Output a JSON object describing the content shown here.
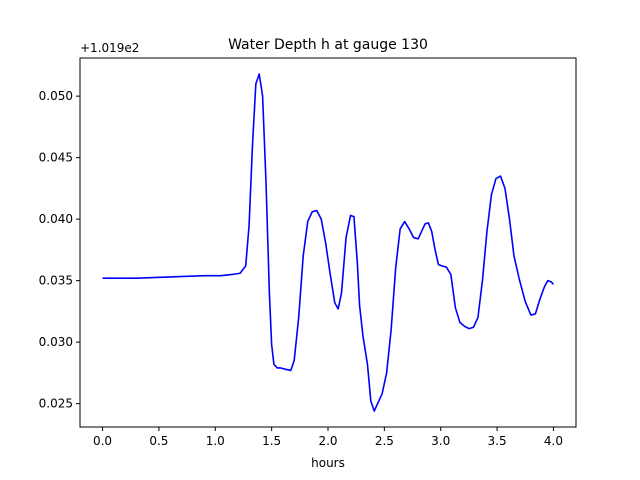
{
  "chart_data": {
    "type": "line",
    "title": "Water Depth h at gauge 130",
    "xlabel": "hours",
    "ylabel": "",
    "y_offset_label": "+1.019e2",
    "xlim": [
      -0.2,
      4.2
    ],
    "ylim": [
      0.0231,
      0.0531
    ],
    "x_ticks": [
      0.0,
      0.5,
      1.0,
      1.5,
      2.0,
      2.5,
      3.0,
      3.5,
      4.0
    ],
    "x_tick_labels": [
      "0.0",
      "0.5",
      "1.0",
      "1.5",
      "2.0",
      "2.5",
      "3.0",
      "3.5",
      "4.0"
    ],
    "y_ticks": [
      0.025,
      0.03,
      0.035,
      0.04,
      0.045,
      0.05
    ],
    "y_tick_labels": [
      "0.025",
      "0.030",
      "0.035",
      "0.040",
      "0.045",
      "0.050"
    ],
    "grid": false,
    "series": [
      {
        "color": "#0000ff",
        "x": [
          0.0,
          0.3,
          0.6,
          0.9,
          1.05,
          1.15,
          1.22,
          1.27,
          1.3,
          1.33,
          1.36,
          1.39,
          1.42,
          1.45,
          1.48,
          1.5,
          1.52,
          1.55,
          1.58,
          1.62,
          1.67,
          1.7,
          1.74,
          1.78,
          1.82,
          1.86,
          1.9,
          1.94,
          1.98,
          2.02,
          2.06,
          2.09,
          2.12,
          2.16,
          2.2,
          2.23,
          2.26,
          2.28,
          2.31,
          2.35,
          2.38,
          2.41,
          2.43,
          2.45,
          2.48,
          2.52,
          2.56,
          2.6,
          2.64,
          2.68,
          2.72,
          2.76,
          2.8,
          2.83,
          2.86,
          2.89,
          2.92,
          2.95,
          2.98,
          3.01,
          3.05,
          3.09,
          3.13,
          3.17,
          3.21,
          3.25,
          3.29,
          3.33,
          3.37,
          3.41,
          3.45,
          3.49,
          3.53,
          3.57,
          3.61,
          3.65,
          3.7,
          3.75,
          3.8,
          3.84,
          3.88,
          3.92,
          3.95,
          3.98,
          4.0
        ],
        "y": [
          0.0352,
          0.0352,
          0.0353,
          0.0354,
          0.0354,
          0.0355,
          0.0356,
          0.0362,
          0.0395,
          0.046,
          0.051,
          0.0518,
          0.05,
          0.043,
          0.034,
          0.0298,
          0.0282,
          0.0279,
          0.0279,
          0.0278,
          0.0277,
          0.0285,
          0.032,
          0.037,
          0.0398,
          0.0406,
          0.0407,
          0.04,
          0.038,
          0.0355,
          0.0332,
          0.0327,
          0.034,
          0.0385,
          0.0403,
          0.0402,
          0.0365,
          0.033,
          0.0305,
          0.0282,
          0.0252,
          0.0244,
          0.0248,
          0.0252,
          0.0258,
          0.0275,
          0.031,
          0.036,
          0.0392,
          0.0398,
          0.0392,
          0.0385,
          0.0384,
          0.039,
          0.0396,
          0.0397,
          0.039,
          0.0375,
          0.0363,
          0.0362,
          0.0361,
          0.0355,
          0.0328,
          0.0316,
          0.0313,
          0.0311,
          0.0312,
          0.032,
          0.035,
          0.039,
          0.042,
          0.0433,
          0.0435,
          0.0425,
          0.04,
          0.037,
          0.035,
          0.0333,
          0.0322,
          0.0323,
          0.0335,
          0.0345,
          0.035,
          0.0349,
          0.0347
        ]
      }
    ]
  }
}
